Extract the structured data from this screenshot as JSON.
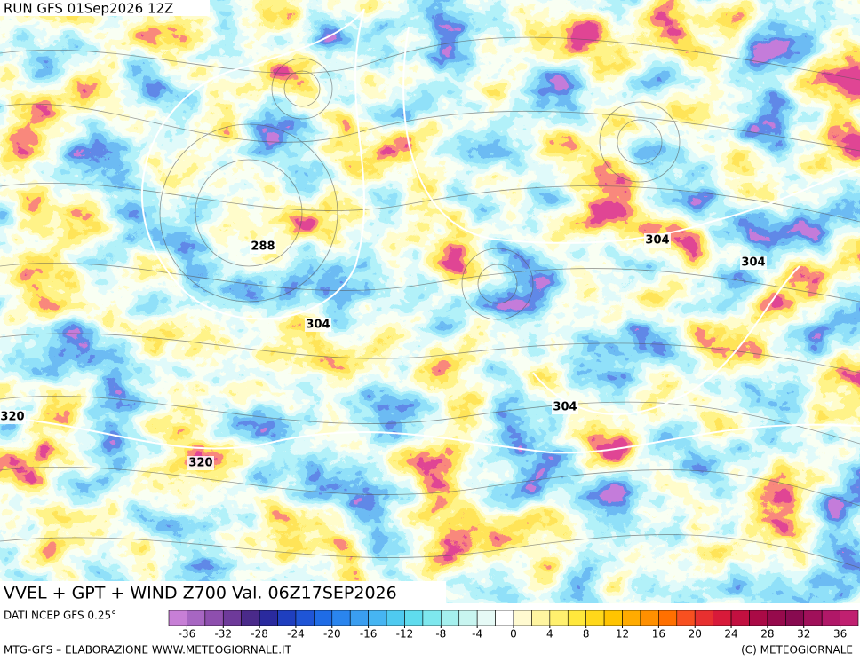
{
  "header": {
    "run": "RUN GFS 01Sep2026 12Z"
  },
  "map": {
    "contour_labels": [
      288,
      304,
      304,
      304,
      304,
      320,
      320
    ]
  },
  "title": "VVEL + GPT + WIND Z700 Val. 06Z17SEP2026",
  "colorbar": {
    "source": "DATI NCEP GFS 0.25°",
    "ticks": [
      -36,
      -32,
      -28,
      -24,
      -20,
      -16,
      -12,
      -8,
      -4,
      0,
      4,
      8,
      12,
      16,
      20,
      24,
      28,
      32,
      36
    ],
    "colors": [
      "#c77fd6",
      "#a766c2",
      "#8e4fae",
      "#6e3a9a",
      "#4a2a8a",
      "#2a2a9e",
      "#1f3fbf",
      "#1f55d6",
      "#1f6ce6",
      "#2a85ee",
      "#3a9ef0",
      "#46b5f2",
      "#4fcaf0",
      "#5fdcee",
      "#7ee8ee",
      "#a5f0ee",
      "#c8f5f0",
      "#e6faf6",
      "#ffffff",
      "#fffad0",
      "#fff5a0",
      "#fff06e",
      "#ffe83c",
      "#ffd81a",
      "#ffc400",
      "#ffab00",
      "#ff9000",
      "#ff7000",
      "#f85020",
      "#e83030",
      "#d81a3a",
      "#c21040",
      "#aa0a46",
      "#960a4c",
      "#880a50",
      "#a0105a",
      "#b01868",
      "#c02070"
    ]
  },
  "footer": {
    "left": "MTG-GFS – ELABORAZIONE WWW.METEOGIORNALE.IT",
    "right": "(C) METEOGIORNALE"
  }
}
